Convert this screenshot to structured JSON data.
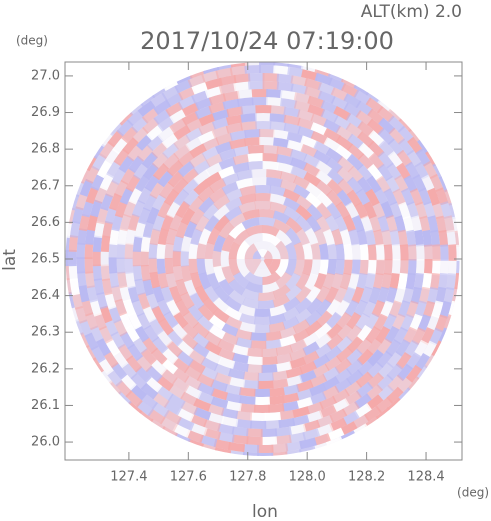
{
  "chart_data": {
    "type": "ppi",
    "title": "2017/10/24 07:19:00",
    "subtitle": "ALT(km) 2.0",
    "x_label": "lon",
    "y_label": "lat",
    "x_unit": "(deg)",
    "y_unit": "(deg)",
    "xlim": [
      127.185,
      128.521
    ],
    "ylim": [
      25.951,
      27.038
    ],
    "xticks": [
      {
        "value": 127.4,
        "label": "127.4"
      },
      {
        "value": 127.6,
        "label": "127.6"
      },
      {
        "value": 127.8,
        "label": "127.8"
      },
      {
        "value": 128.0,
        "label": "128.0"
      },
      {
        "value": 128.2,
        "label": "128.2"
      },
      {
        "value": 128.4,
        "label": "128.4"
      }
    ],
    "yticks": [
      {
        "value": 26.0,
        "label": "26.0"
      },
      {
        "value": 26.1,
        "label": "26.1"
      },
      {
        "value": 26.2,
        "label": "26.2"
      },
      {
        "value": 26.3,
        "label": "26.3"
      },
      {
        "value": 26.4,
        "label": "26.4"
      },
      {
        "value": 26.5,
        "label": "26.5"
      },
      {
        "value": 26.6,
        "label": "26.6"
      },
      {
        "value": 26.7,
        "label": "26.7"
      },
      {
        "value": 26.8,
        "label": "26.8"
      },
      {
        "value": 26.9,
        "label": "26.9"
      },
      {
        "value": 27.0,
        "label": "27.0"
      }
    ],
    "center": [
      127.85,
      26.5
    ],
    "colors": [
      "#f5a9a9",
      "#b9b9f2"
    ]
  }
}
